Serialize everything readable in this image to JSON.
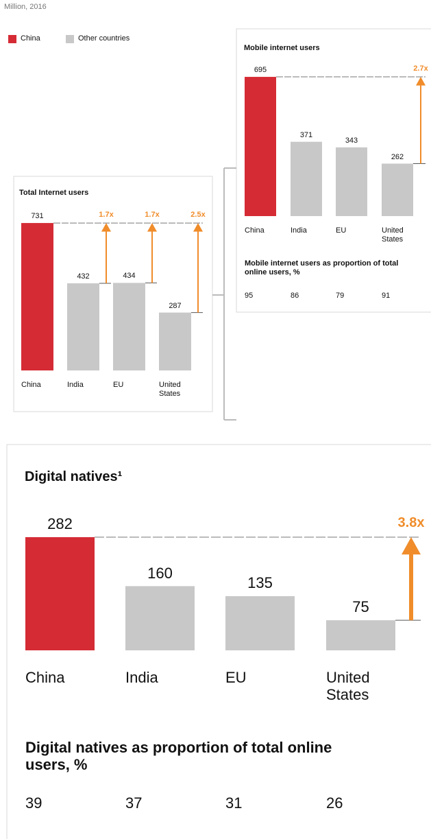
{
  "subtitle": "Million, 2016",
  "legend": [
    {
      "name": "China",
      "color": "#d52b35"
    },
    {
      "name": "Other countries",
      "color": "#c8c8c8"
    }
  ],
  "chart_data": [
    {
      "type": "bar",
      "title": "Total Internet users",
      "categories": [
        "China",
        "India",
        "EU",
        "United States"
      ],
      "values": [
        731,
        432,
        434,
        287
      ],
      "colors": [
        "#d52b35",
        "#c8c8c8",
        "#c8c8c8",
        "#c8c8c8"
      ],
      "multipliers": [
        null,
        "1.7x",
        "1.7x",
        "2.5x"
      ]
    },
    {
      "type": "bar",
      "title": "Mobile internet users",
      "categories": [
        "China",
        "India",
        "EU",
        "United States"
      ],
      "values": [
        695,
        371,
        343,
        262
      ],
      "colors": [
        "#d52b35",
        "#c8c8c8",
        "#c8c8c8",
        "#c8c8c8"
      ],
      "multipliers": [
        null,
        null,
        null,
        "2.7x"
      ],
      "proportion_title": "Mobile internet users as proportion of total online users, %",
      "proportions": [
        95,
        86,
        79,
        91
      ]
    },
    {
      "type": "bar",
      "title": "Digital natives¹",
      "categories": [
        "China",
        "India",
        "EU",
        "United States"
      ],
      "values": [
        282,
        160,
        135,
        75
      ],
      "colors": [
        "#d52b35",
        "#c8c8c8",
        "#c8c8c8",
        "#c8c8c8"
      ],
      "multipliers": [
        null,
        null,
        null,
        "3.8x"
      ],
      "proportion_title": "Digital natives as proportion of total online users, %",
      "proportions": [
        39,
        37,
        31,
        26
      ]
    }
  ]
}
